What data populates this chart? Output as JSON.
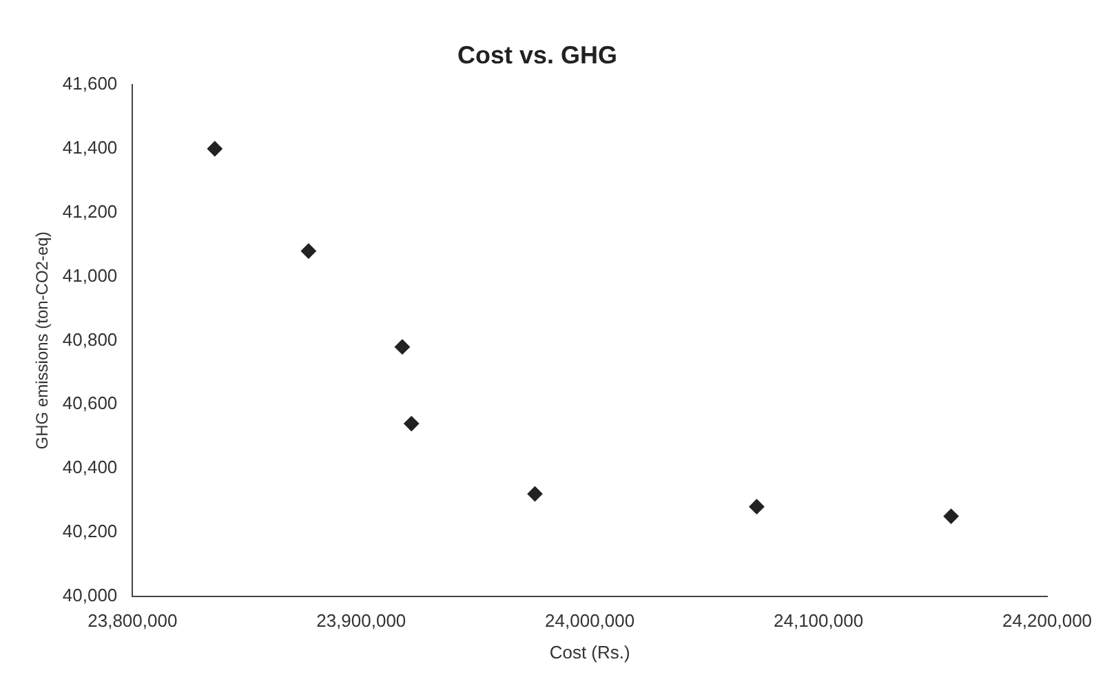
{
  "chart_data": {
    "type": "scatter",
    "title": "Cost vs. GHG",
    "xlabel": "Cost (Rs.)",
    "ylabel": "GHG emissions (ton-CO2-eq)",
    "x": [
      23836000,
      23877000,
      23918000,
      23922000,
      23976000,
      24073000,
      24158000
    ],
    "values": [
      41400,
      41080,
      40780,
      40540,
      40320,
      40280,
      40250
    ],
    "color": "#222222",
    "marker": "diamond",
    "grid": false,
    "legend": false,
    "xlim": [
      23800000,
      24200000
    ],
    "xticks": [
      {
        "value": 23800000,
        "label": "23,800,000"
      },
      {
        "value": 23900000,
        "label": "23,900,000"
      },
      {
        "value": 24000000,
        "label": "24,000,000"
      },
      {
        "value": 24100000,
        "label": "24,100,000"
      },
      {
        "value": 24200000,
        "label": "24,200,000"
      }
    ],
    "ylim": [
      40000,
      41600
    ],
    "yticks": [
      {
        "value": 40000,
        "label": "40,000"
      },
      {
        "value": 40200,
        "label": "40,200"
      },
      {
        "value": 40400,
        "label": "40,400"
      },
      {
        "value": 40600,
        "label": "40,600"
      },
      {
        "value": 40800,
        "label": "40,800"
      },
      {
        "value": 41000,
        "label": "41,000"
      },
      {
        "value": 41200,
        "label": "41,200"
      },
      {
        "value": 41400,
        "label": "41,400"
      },
      {
        "value": 41600,
        "label": "41,600"
      }
    ]
  }
}
